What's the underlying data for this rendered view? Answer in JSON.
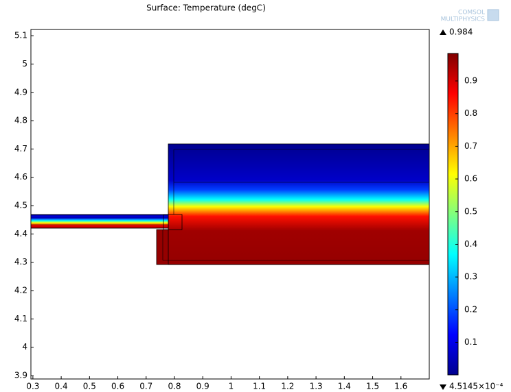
{
  "chart_data": {
    "type": "surface",
    "title": "Surface: Temperature (degC)",
    "watermark": [
      "COMSOL",
      "MULTIPHYSICS"
    ],
    "xlim": [
      0.293,
      1.7
    ],
    "xticks": [
      0.3,
      0.4,
      0.5,
      0.6,
      0.7,
      0.8,
      0.9,
      1,
      1.1,
      1.2,
      1.3,
      1.4,
      1.5,
      1.6
    ],
    "ylim": [
      3.888,
      5.122
    ],
    "yticks": [
      3.9,
      4,
      4.1,
      4.2,
      4.3,
      4.4,
      4.5,
      4.6,
      4.7,
      4.8,
      4.9,
      5,
      5.1
    ],
    "colormap": "jet",
    "clim": [
      0.00045145,
      0.984
    ],
    "cticks": [
      0.1,
      0.2,
      0.3,
      0.4,
      0.5,
      0.6,
      0.7,
      0.8,
      0.9
    ],
    "cmax": 0.984,
    "cmin": {
      "value": 0.00045145,
      "label": "4.5145×10⁻⁴"
    }
  }
}
